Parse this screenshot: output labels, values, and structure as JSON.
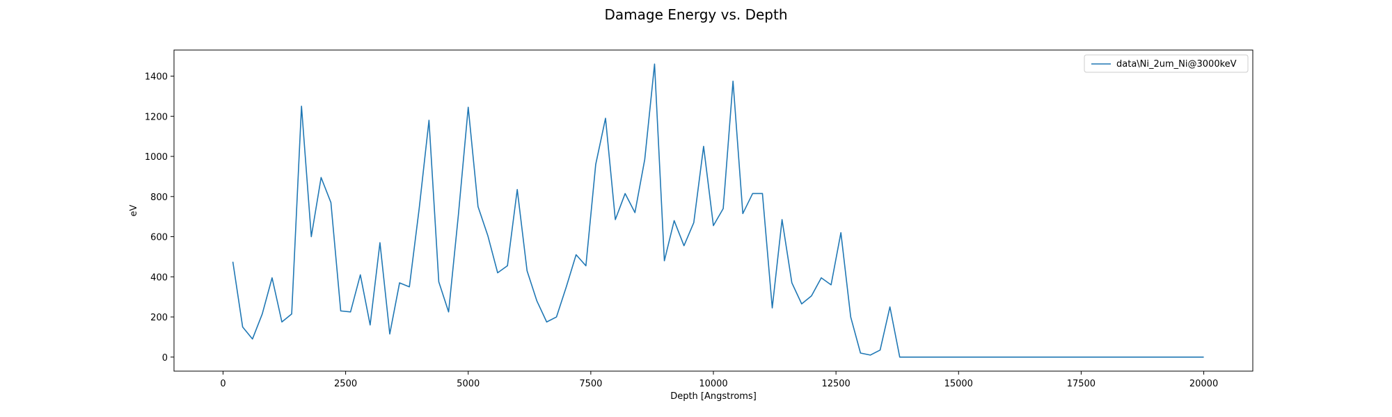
{
  "chart_data": {
    "type": "line",
    "title": "Damage Energy vs. Depth",
    "xlabel": "Depth [Angstroms]",
    "ylabel": "eV",
    "xlim": [
      -1000,
      21000
    ],
    "ylim": [
      -70,
      1530
    ],
    "xticks": [
      0,
      2500,
      5000,
      7500,
      10000,
      12500,
      15000,
      17500,
      20000
    ],
    "yticks": [
      0,
      200,
      400,
      600,
      800,
      1000,
      1200,
      1400
    ],
    "grid": false,
    "legend_position": "top-right",
    "line_color": "#1f77b4",
    "series": [
      {
        "name": "data\\Ni_2um_Ni@3000keV",
        "x": [
          200,
          400,
          600,
          800,
          1000,
          1200,
          1400,
          1600,
          1800,
          2000,
          2200,
          2400,
          2600,
          2800,
          3000,
          3200,
          3400,
          3600,
          3800,
          4000,
          4200,
          4400,
          4600,
          4800,
          5000,
          5200,
          5400,
          5600,
          5800,
          6000,
          6200,
          6400,
          6600,
          6800,
          7000,
          7200,
          7400,
          7600,
          7800,
          8000,
          8200,
          8400,
          8600,
          8800,
          9000,
          9200,
          9400,
          9600,
          9800,
          10000,
          10200,
          10400,
          10600,
          10800,
          11000,
          11200,
          11400,
          11600,
          11800,
          12000,
          12200,
          12400,
          12600,
          12800,
          13000,
          13200,
          13400,
          13600,
          13800,
          14000,
          14200,
          14400,
          14600,
          14800,
          15000,
          15200,
          15400,
          15600,
          15800,
          16000,
          16200,
          16400,
          16600,
          16800,
          17000,
          17200,
          17400,
          17600,
          17800,
          18000,
          18200,
          18400,
          18600,
          18800,
          19000,
          19200,
          19400,
          19600,
          19800,
          20000
        ],
        "y": [
          475,
          150,
          90,
          215,
          395,
          175,
          215,
          1250,
          600,
          895,
          770,
          230,
          225,
          410,
          160,
          570,
          115,
          370,
          350,
          740,
          1180,
          375,
          225,
          710,
          1245,
          750,
          605,
          420,
          455,
          835,
          430,
          280,
          175,
          200,
          350,
          510,
          455,
          960,
          1190,
          685,
          815,
          720,
          985,
          1460,
          480,
          680,
          555,
          670,
          1050,
          655,
          740,
          1375,
          715,
          815,
          815,
          245,
          685,
          370,
          265,
          305,
          395,
          360,
          620,
          200,
          20,
          10,
          35,
          250,
          0,
          0,
          0,
          0,
          0,
          0,
          0,
          0,
          0,
          0,
          0,
          0,
          0,
          0,
          0,
          0,
          0,
          0,
          0,
          0,
          0,
          0,
          0,
          0,
          0,
          0,
          0,
          0,
          0,
          0,
          0,
          0
        ]
      }
    ]
  }
}
